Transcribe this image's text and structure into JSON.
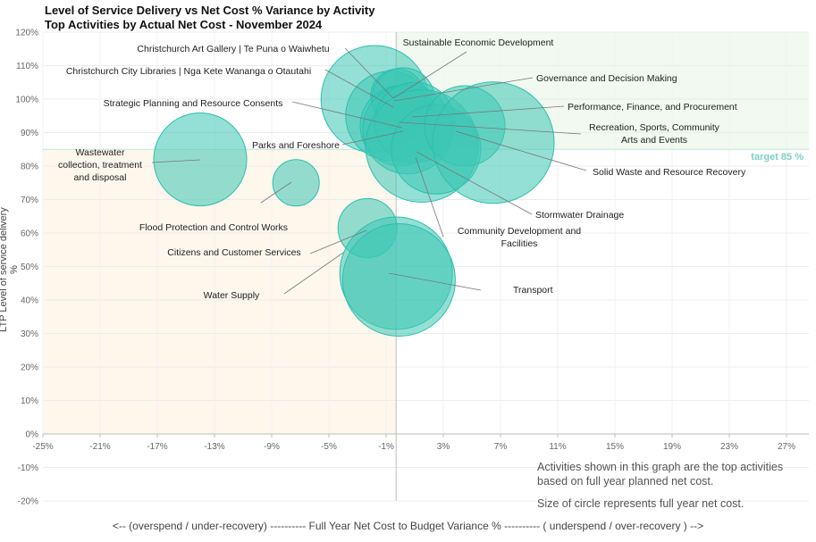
{
  "chart_data": {
    "type": "scatter",
    "title": "Level of Service Delivery vs Net Cost % Variance by Activity",
    "subtitle": "Top Activities by Actual  Net Cost - November 2024",
    "xlabel": "<-- (overspend / under-recovery) ---------- Full Year Net Cost to Budget Variance % ---------- ( underspend / over-recovery ) -->",
    "ylabel": "LTP Level of service delivery %",
    "xlim": [
      -25,
      29
    ],
    "ylim": [
      -20,
      120
    ],
    "xticks": [
      -25,
      -21,
      -17,
      -13,
      -9,
      -5,
      -1,
      3,
      7,
      11,
      15,
      19,
      23,
      27
    ],
    "xtick_labels": [
      "-25%",
      "-21%",
      "-17%",
      "-13%",
      "-9%",
      "-5%",
      "-1%",
      "3%",
      "7%",
      "11%",
      "15%",
      "19%",
      "23%",
      "27%"
    ],
    "yticks": [
      -20,
      -10,
      0,
      10,
      20,
      30,
      40,
      50,
      60,
      70,
      80,
      90,
      100,
      110,
      120
    ],
    "ytick_labels": [
      "-20%",
      "-10%",
      "0%",
      "10%",
      "20%",
      "30%",
      "40%",
      "50%",
      "60%",
      "70%",
      "80%",
      "90%",
      "100%",
      "110%",
      "120%"
    ],
    "target": 85,
    "target_label": "target 85 %",
    "bubble_color": "#3cc7b5",
    "series": [
      {
        "name": "Wastewater collection, treatment and disposal",
        "label_lines": [
          "Wastewater",
          "collection, treatment",
          "and disposal"
        ],
        "x": -14,
        "y": 82,
        "size": 52
      },
      {
        "name": "Flood Protection and Control Works",
        "label_lines": [
          "Flood Protection and Control Works"
        ],
        "x": -7.3,
        "y": 75,
        "size": 26
      },
      {
        "name": "Citizens and Customer Services",
        "label_lines": [
          "Citizens and Customer Services"
        ],
        "x": -2.3,
        "y": 61.5,
        "size": 33
      },
      {
        "name": "Water Supply",
        "label_lines": [
          "Water Supply"
        ],
        "x": -0.3,
        "y": 48,
        "size": 63
      },
      {
        "name": "Transport",
        "label_lines": [
          "Transport"
        ],
        "x": -0.1,
        "y": 46,
        "size": 63
      },
      {
        "name": "Christchurch Art Gallery | Te Puna o Waiwhetu",
        "label_lines": [
          "Christchurch Art Gallery | Te Puna o Waiwhetu"
        ],
        "x": -1.8,
        "y": 100,
        "size": 60
      },
      {
        "name": "Christchurch City Libraries | Nga Kete Wananga o Otautahi",
        "label_lines": [
          "Christchurch City Libraries | Nga Kete Wananga o Otautahi"
        ],
        "x": -0.7,
        "y": 95,
        "size": 50
      },
      {
        "name": "Sustainable Economic Development",
        "label_lines": [
          "Sustainable Economic Development"
        ],
        "x": -0.2,
        "y": 101,
        "size": 30
      },
      {
        "name": "Governance and Decision Making",
        "label_lines": [
          "Governance and Decision Making"
        ],
        "x": 0.2,
        "y": 100,
        "size": 35
      },
      {
        "name": "Strategic Planning and Resource Consents",
        "label_lines": [
          "Strategic Planning and Resource Consents"
        ],
        "x": 0,
        "y": 92,
        "size": 45
      },
      {
        "name": "Parks and Foreshore",
        "label_lines": [
          "Parks and Foreshore"
        ],
        "x": 0.5,
        "y": 91,
        "size": 50
      },
      {
        "name": "Performance, Finance, and Procurement",
        "label_lines": [
          "Performance, Finance, and Procurement"
        ],
        "x": 1,
        "y": 93,
        "size": 45
      },
      {
        "name": "Community Development and Facilities",
        "label_lines": [
          "Community Development and",
          "Facilities"
        ],
        "x": 1.5,
        "y": 86,
        "size": 63
      },
      {
        "name": "Stormwater Drainage",
        "label_lines": [
          "Stormwater Drainage"
        ],
        "x": 2.5,
        "y": 85,
        "size": 50
      },
      {
        "name": "Recreation, Sports, Community Arts and Events",
        "label_lines": [
          "Recreation, Sports, Community",
          "Arts and Events"
        ],
        "x": 4.5,
        "y": 92,
        "size": 45
      },
      {
        "name": "Solid Waste and Resource Recovery",
        "label_lines": [
          "Solid Waste and Resource Recovery"
        ],
        "x": 6.5,
        "y": 87,
        "size": 68
      }
    ],
    "notes": [
      "Activities shown in this graph are the top activities based on full year planned net cost.",
      "Size of circle represents full year net cost."
    ]
  }
}
